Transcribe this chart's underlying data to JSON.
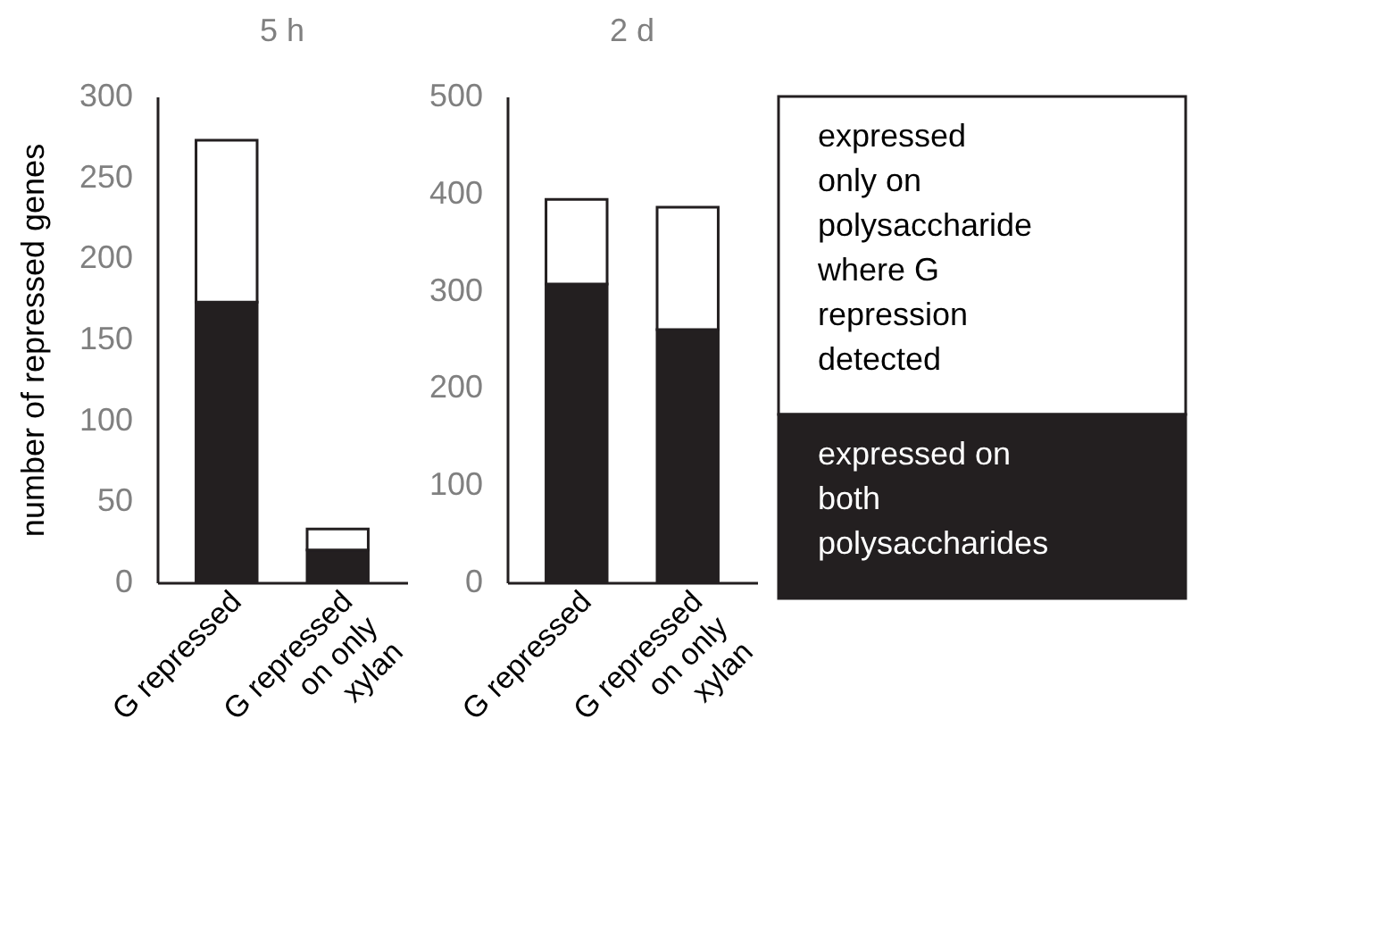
{
  "chart_data": [
    {
      "type": "bar",
      "title": "5 h",
      "ylabel": "number of repressed genes",
      "categories": [
        "G repressed",
        "G repressed on only xylan"
      ],
      "stacked": true,
      "ylim": [
        0,
        300
      ],
      "yticks": [
        0,
        50,
        100,
        150,
        200,
        250,
        300
      ],
      "grid": false,
      "series": [
        {
          "color": "#231f20",
          "values": [
            173,
            20
          ]
        },
        {
          "color": "#ffffff",
          "values": [
            100,
            13
          ]
        }
      ]
    },
    {
      "type": "bar",
      "title": "2 d",
      "categories": [
        "G repressed",
        "G repressed on only xylan"
      ],
      "stacked": true,
      "ylim": [
        0,
        500
      ],
      "yticks": [
        0,
        100,
        200,
        300,
        400,
        500
      ],
      "grid": false,
      "legend": "right",
      "series": [
        {
          "name": "expressed on both polysaccharides",
          "color": "#231f20",
          "values": [
            307,
            260
          ]
        },
        {
          "name": "expressed only on polysaccharide where G repression detected",
          "color": "#ffffff",
          "values": [
            87,
            126
          ]
        }
      ]
    }
  ]
}
